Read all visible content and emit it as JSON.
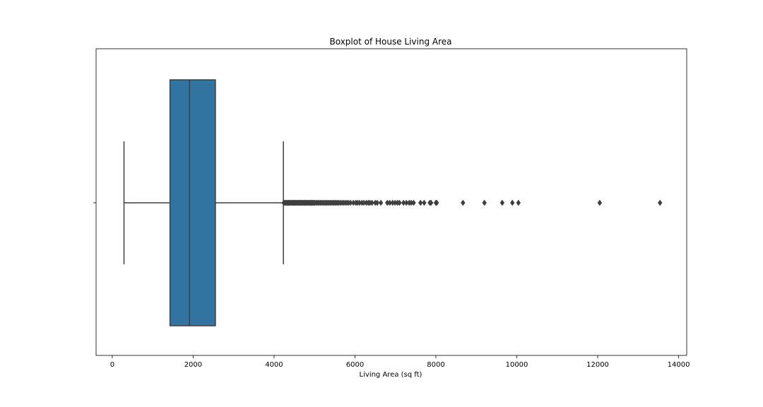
{
  "chart_data": {
    "type": "boxplot",
    "title": "Boxplot of House Living Area",
    "xlabel": "Living Area (sq ft)",
    "ylabel": "",
    "xlim": [
      -400,
      14200
    ],
    "xticks": [
      0,
      2000,
      4000,
      6000,
      8000,
      10000,
      12000,
      14000
    ],
    "xtick_labels": [
      "0",
      "2000",
      "4000",
      "6000",
      "8000",
      "10000",
      "12000",
      "14000"
    ],
    "grid": false,
    "box": {
      "whisker_low": 290,
      "q1": 1427,
      "median": 1910,
      "q3": 2550,
      "whisker_high": 4230
    },
    "outliers": [
      4240,
      4260,
      4280,
      4300,
      4320,
      4340,
      4360,
      4380,
      4400,
      4420,
      4440,
      4460,
      4480,
      4500,
      4520,
      4540,
      4560,
      4580,
      4600,
      4620,
      4640,
      4660,
      4680,
      4700,
      4720,
      4740,
      4760,
      4780,
      4800,
      4820,
      4840,
      4860,
      4880,
      4900,
      4920,
      4940,
      4960,
      4980,
      5000,
      5030,
      5060,
      5090,
      5120,
      5150,
      5180,
      5210,
      5240,
      5270,
      5300,
      5330,
      5360,
      5390,
      5420,
      5450,
      5480,
      5510,
      5540,
      5570,
      5600,
      5640,
      5680,
      5720,
      5760,
      5800,
      5840,
      5890,
      5960,
      6020,
      6060,
      6110,
      6170,
      6220,
      6280,
      6330,
      6370,
      6420,
      6500,
      6550,
      6640,
      6800,
      6860,
      6930,
      6990,
      7050,
      7100,
      7200,
      7270,
      7340,
      7390,
      7450,
      7620,
      7710,
      7850,
      7880,
      8000,
      8020,
      8670,
      9200,
      9640,
      9890,
      10040,
      12050,
      13540
    ],
    "colors": {
      "box": "#3274a1",
      "line": "#3f3f3f",
      "outlier": "#3f3f3f"
    }
  }
}
